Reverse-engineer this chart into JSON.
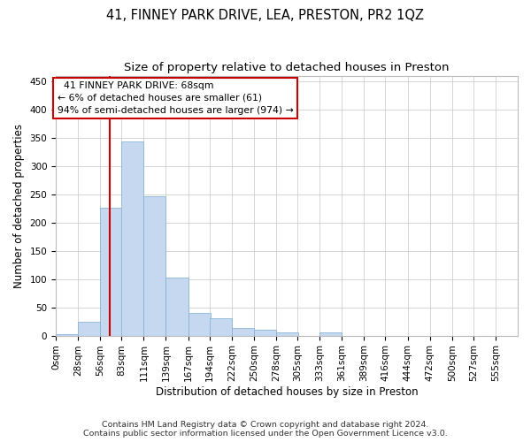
{
  "title_line1": "41, FINNEY PARK DRIVE, LEA, PRESTON, PR2 1QZ",
  "title_line2": "Size of property relative to detached houses in Preston",
  "xlabel": "Distribution of detached houses by size in Preston",
  "ylabel": "Number of detached properties",
  "footnote": "Contains HM Land Registry data © Crown copyright and database right 2024.\nContains public sector information licensed under the Open Government Licence v3.0.",
  "bin_labels": [
    "0sqm",
    "28sqm",
    "56sqm",
    "83sqm",
    "111sqm",
    "139sqm",
    "167sqm",
    "194sqm",
    "222sqm",
    "250sqm",
    "278sqm",
    "305sqm",
    "333sqm",
    "361sqm",
    "389sqm",
    "416sqm",
    "444sqm",
    "472sqm",
    "500sqm",
    "527sqm",
    "555sqm"
  ],
  "bar_values": [
    2,
    24,
    226,
    344,
    247,
    102,
    40,
    30,
    13,
    10,
    5,
    0,
    5,
    0,
    0,
    0,
    0,
    0,
    0,
    0,
    0
  ],
  "bar_color": "#c5d8f0",
  "bar_edgecolor": "#7aadd4",
  "vline_x": 68,
  "vline_color": "#cc0000",
  "annotation_text": "  41 FINNEY PARK DRIVE: 68sqm\n← 6% of detached houses are smaller (61)\n94% of semi-detached houses are larger (974) →",
  "annotation_box_color": "#cc0000",
  "ylim": [
    0,
    460
  ],
  "yticks": [
    0,
    50,
    100,
    150,
    200,
    250,
    300,
    350,
    400,
    450
  ],
  "bin_starts": [
    0,
    28,
    56,
    83,
    111,
    139,
    167,
    194,
    222,
    250,
    278,
    305,
    333,
    361,
    389,
    416,
    444,
    472,
    500,
    527,
    555
  ],
  "bin_width": 28,
  "property_size": 68,
  "title_fontsize": 10.5,
  "subtitle_fontsize": 9.5,
  "axis_label_fontsize": 8.5,
  "tick_fontsize": 7.5,
  "annotation_fontsize": 7.8,
  "footnote_fontsize": 6.8
}
